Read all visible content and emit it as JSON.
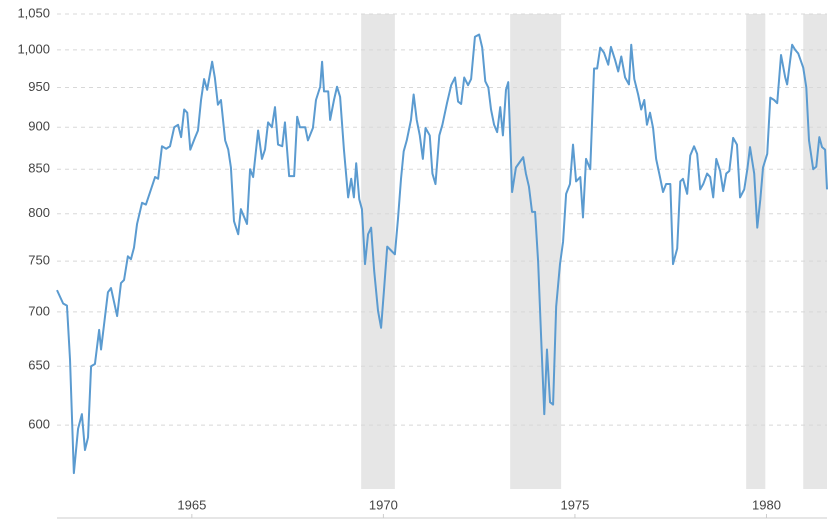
{
  "chart_data": {
    "type": "line",
    "x": [
      1961.48,
      1961.64,
      1961.74,
      1961.82,
      1961.92,
      1962.03,
      1962.13,
      1962.21,
      1962.29,
      1962.37,
      1962.47,
      1962.58,
      1962.63,
      1962.81,
      1962.89,
      1963.05,
      1963.15,
      1963.23,
      1963.33,
      1963.41,
      1963.49,
      1963.57,
      1963.7,
      1963.8,
      1963.91,
      1964.04,
      1964.12,
      1964.22,
      1964.33,
      1964.43,
      1964.54,
      1964.64,
      1964.72,
      1964.8,
      1964.88,
      1964.96,
      1965.08,
      1965.16,
      1965.24,
      1965.32,
      1965.4,
      1965.53,
      1965.6,
      1965.68,
      1965.76,
      1965.87,
      1965.95,
      1966.02,
      1966.1,
      1966.21,
      1966.28,
      1966.44,
      1966.52,
      1966.6,
      1966.73,
      1966.83,
      1966.91,
      1966.99,
      1967.09,
      1967.17,
      1967.25,
      1967.36,
      1967.43,
      1967.54,
      1967.67,
      1967.75,
      1967.82,
      1967.96,
      1968.03,
      1968.16,
      1968.24,
      1968.35,
      1968.4,
      1968.45,
      1968.56,
      1968.61,
      1968.71,
      1968.79,
      1968.87,
      1968.97,
      1969.08,
      1969.16,
      1969.23,
      1969.29,
      1969.37,
      1969.44,
      1969.52,
      1969.6,
      1969.68,
      1969.76,
      1969.86,
      1969.94,
      1970.02,
      1970.1,
      1970.3,
      1970.38,
      1970.46,
      1970.53,
      1970.61,
      1970.72,
      1970.79,
      1970.87,
      1970.95,
      1971.03,
      1971.1,
      1971.21,
      1971.28,
      1971.36,
      1971.46,
      1971.54,
      1971.66,
      1971.77,
      1971.87,
      1971.95,
      1972.03,
      1972.11,
      1972.21,
      1972.29,
      1972.39,
      1972.5,
      1972.58,
      1972.66,
      1972.74,
      1972.81,
      1972.89,
      1972.97,
      1973.05,
      1973.12,
      1973.2,
      1973.26,
      1973.36,
      1973.46,
      1973.57,
      1973.65,
      1973.72,
      1973.8,
      1973.88,
      1973.96,
      1974.04,
      1974.12,
      1974.2,
      1974.27,
      1974.35,
      1974.43,
      1974.51,
      1974.61,
      1974.69,
      1974.77,
      1974.87,
      1974.95,
      1975.03,
      1975.14,
      1975.21,
      1975.29,
      1975.4,
      1975.5,
      1975.58,
      1975.66,
      1975.76,
      1975.87,
      1975.94,
      1976.05,
      1976.13,
      1976.21,
      1976.31,
      1976.41,
      1976.47,
      1976.55,
      1976.65,
      1976.73,
      1976.81,
      1976.88,
      1976.96,
      1977.04,
      1977.12,
      1977.22,
      1977.3,
      1977.38,
      1977.49,
      1977.56,
      1977.67,
      1977.75,
      1977.82,
      1977.93,
      1978.01,
      1978.11,
      1978.19,
      1978.27,
      1978.35,
      1978.45,
      1978.53,
      1978.61,
      1978.69,
      1978.79,
      1978.87,
      1978.95,
      1979.03,
      1979.13,
      1979.23,
      1979.31,
      1979.42,
      1979.5,
      1979.57,
      1979.68,
      1979.76,
      1979.84,
      1979.91,
      1980.02,
      1980.1,
      1980.2,
      1980.28,
      1980.38,
      1980.49,
      1980.54,
      1980.67,
      1980.75,
      1980.83,
      1980.96,
      1981.04,
      1981.11,
      1981.22,
      1981.3,
      1981.38,
      1981.45,
      1981.53,
      1981.58
    ],
    "series": [
      {
        "color": "#5b9bd0",
        "values": [
          721,
          708,
          706,
          656,
          562,
          597,
          609,
          580,
          590,
          650,
          652,
          683,
          665,
          719,
          723,
          696,
          728,
          731,
          755,
          752,
          764,
          789,
          812,
          810,
          824,
          841,
          839,
          877,
          874,
          877,
          900,
          903,
          888,
          922,
          918,
          873,
          887,
          896,
          934,
          961,
          947,
          984,
          963,
          928,
          934,
          884,
          873,
          852,
          792,
          778,
          805,
          789,
          850,
          841,
          896,
          862,
          873,
          906,
          900,
          925,
          879,
          877,
          906,
          842,
          842,
          913,
          900,
          900,
          884,
          899,
          934,
          951,
          984,
          945,
          945,
          909,
          934,
          951,
          938,
          873,
          818,
          839,
          818,
          857,
          816,
          805,
          747,
          778,
          785,
          740,
          701,
          685,
          723,
          765,
          757,
          794,
          839,
          871,
          884,
          909,
          941,
          909,
          890,
          862,
          899,
          890,
          845,
          833,
          890,
          903,
          930,
          953,
          963,
          932,
          929,
          963,
          953,
          961,
          1018,
          1021,
          1003,
          958,
          950,
          922,
          903,
          894,
          925,
          890,
          947,
          957,
          824,
          852,
          859,
          864,
          845,
          830,
          802,
          802,
          749,
          674,
          609,
          665,
          619,
          617,
          705,
          747,
          770,
          822,
          833,
          879,
          836,
          841,
          796,
          862,
          850,
          975,
          975,
          1003,
          996,
          980,
          1004,
          986,
          971,
          991,
          963,
          954,
          1007,
          961,
          941,
          922,
          934,
          903,
          918,
          899,
          862,
          841,
          824,
          833,
          833,
          747,
          763,
          836,
          839,
          822,
          866,
          877,
          868,
          827,
          833,
          845,
          841,
          818,
          862,
          848,
          825,
          845,
          848,
          887,
          879,
          818,
          827,
          850,
          876,
          845,
          785,
          816,
          852,
          868,
          937,
          934,
          930,
          993,
          963,
          954,
          1007,
          1000,
          995,
          976,
          950,
          884,
          850,
          853,
          888,
          876,
          873,
          827
        ]
      }
    ],
    "shaded_ranges": [
      [
        1969.42,
        1970.3
      ],
      [
        1973.31,
        1974.64
      ],
      [
        1979.47,
        1979.97
      ],
      [
        1980.96,
        1981.58
      ]
    ],
    "xlim": [
      1961.48,
      1981.58
    ],
    "xticks": [
      1965,
      1970,
      1975,
      1980
    ],
    "ylim": [
      550,
      1050
    ],
    "log_y": true,
    "yticks": [
      600,
      650,
      700,
      750,
      800,
      850,
      900,
      950,
      {
        "value": 1000,
        "label": "1,000"
      },
      {
        "value": 1050,
        "label": "1,050"
      }
    ],
    "grid": true
  }
}
